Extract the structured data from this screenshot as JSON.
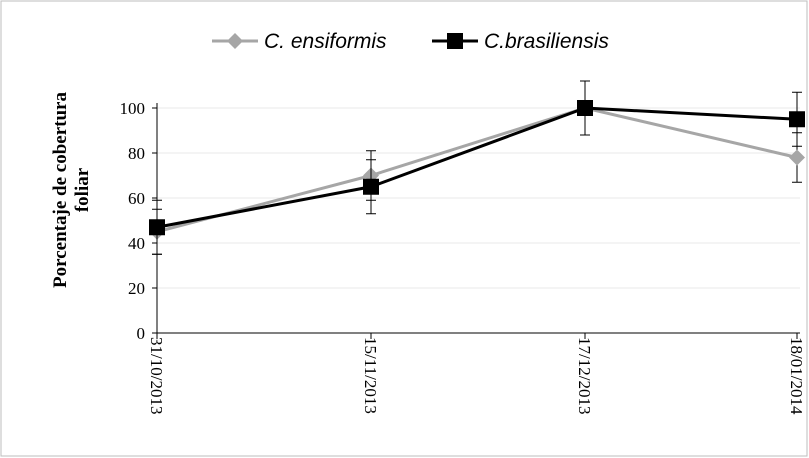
{
  "chart_data": {
    "type": "line",
    "title": "",
    "xlabel": "",
    "ylabel_line1": "Porcentaje de cobertura",
    "ylabel_line2": "foliar",
    "categories": [
      "31/10/2013",
      "15/11/2013",
      "17/12/2013",
      "18/01/2014"
    ],
    "ylim": [
      0,
      100
    ],
    "yticks": [
      "0",
      "20",
      "40",
      "60",
      "80",
      "100"
    ],
    "grid": "horizontal",
    "legend_position": "top",
    "series": [
      {
        "name": "C. ensiformis",
        "color": "#a6a6a6",
        "marker": "diamond",
        "values": [
          45,
          70,
          100,
          78
        ],
        "error": [
          10,
          11,
          12,
          11
        ]
      },
      {
        "name": "C.brasiliensis",
        "color": "#000000",
        "marker": "square",
        "values": [
          47,
          65,
          100,
          95
        ],
        "error": [
          12,
          12,
          12,
          12
        ]
      }
    ]
  }
}
